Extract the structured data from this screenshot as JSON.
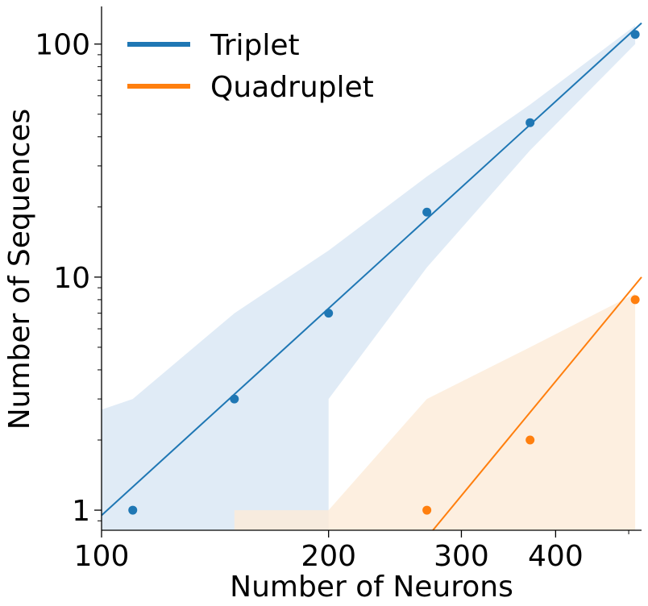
{
  "chart_data": {
    "type": "scatter",
    "x_scale": "log",
    "y_scale": "log",
    "xlabel": "Number of Neurons",
    "ylabel": "Number of Sequences",
    "xlim": [
      100,
      520
    ],
    "ylim": [
      0.82,
      145
    ],
    "x_ticks": [
      {
        "value": 100,
        "label": "100"
      },
      {
        "value": 200,
        "label": "200"
      },
      {
        "value": 300,
        "label": "300"
      },
      {
        "value": 400,
        "label": "400"
      }
    ],
    "y_ticks": [
      {
        "value": 1,
        "label": "1"
      },
      {
        "value": 10,
        "label": "10"
      },
      {
        "value": 100,
        "label": "100"
      }
    ],
    "grid": false,
    "legend": {
      "placement": "top-left"
    },
    "series": [
      {
        "name": "Triplet",
        "color": "#1f77b4",
        "band_color": "#dbe8f5",
        "points": [
          {
            "x": 110,
            "y": 1
          },
          {
            "x": 150,
            "y": 3
          },
          {
            "x": 200,
            "y": 7
          },
          {
            "x": 270,
            "y": 19
          },
          {
            "x": 370,
            "y": 46
          },
          {
            "x": 510,
            "y": 110
          }
        ],
        "fit": {
          "x": [
            100,
            520
          ],
          "y": [
            0.95,
            123
          ]
        },
        "band": {
          "upper": [
            [
              100,
              2.7
            ],
            [
              110,
              3.0
            ],
            [
              150,
              7.0
            ],
            [
              200,
              13
            ],
            [
              270,
              27
            ],
            [
              370,
              55
            ],
            [
              510,
              120
            ]
          ],
          "lower": [
            [
              100,
              0.82
            ],
            [
              200,
              0.82
            ],
            [
              200,
              3.0
            ],
            [
              270,
              11
            ],
            [
              370,
              35
            ],
            [
              510,
              100
            ]
          ]
        }
      },
      {
        "name": "Quadruplet",
        "color": "#ff7f0e",
        "band_color": "#fdebd8",
        "points": [
          {
            "x": 270,
            "y": 1
          },
          {
            "x": 370,
            "y": 2
          },
          {
            "x": 510,
            "y": 8
          }
        ],
        "fit": {
          "x": [
            275,
            520
          ],
          "y": [
            0.82,
            10
          ]
        },
        "band": {
          "upper": [
            [
              150,
              1.0
            ],
            [
              200,
              1.0
            ],
            [
              270,
              3.0
            ],
            [
              370,
              5.0
            ],
            [
              510,
              8.5
            ]
          ],
          "lower": [
            [
              150,
              0.82
            ],
            [
              510,
              0.82
            ]
          ]
        }
      }
    ]
  }
}
